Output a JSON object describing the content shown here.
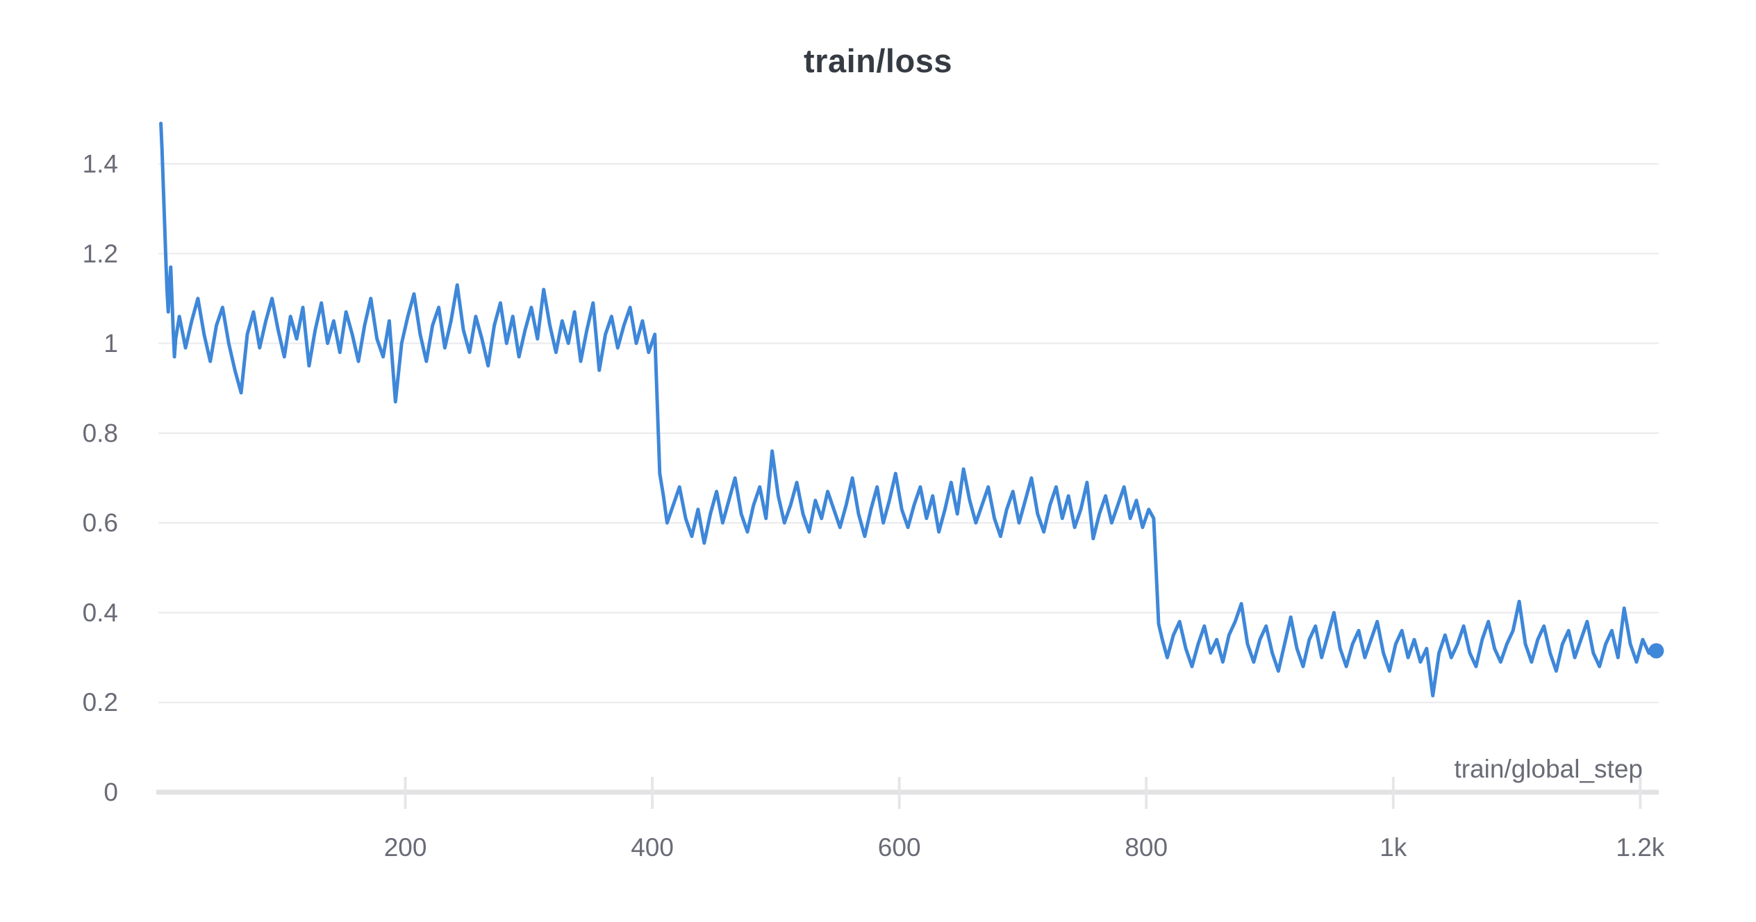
{
  "page": {
    "background": "#ffffff"
  },
  "chart_data": {
    "type": "line",
    "title": "train/loss",
    "xlabel": "train/global_step",
    "ylabel": "",
    "legend": "none",
    "grid": "horizontal",
    "end_marker": true,
    "colors": {
      "line": "#3e87d9",
      "gridline": "#eaeaec",
      "baseline": "#e2e2e5",
      "tick_mark": "#e6e6e8",
      "tick_text": "#696b76",
      "title_text": "#363b43"
    },
    "x_axis": {
      "range": [
        0,
        1215
      ],
      "ticks": [
        200,
        400,
        600,
        800,
        1000,
        1200
      ],
      "tick_labels": [
        "200",
        "400",
        "600",
        "800",
        "1k",
        "1.2k"
      ]
    },
    "y_axis": {
      "range": [
        0,
        1.55
      ],
      "ticks": [
        0,
        0.2,
        0.4,
        0.6,
        0.8,
        1,
        1.2,
        1.4
      ],
      "tick_labels": [
        "0",
        "0.2",
        "0.4",
        "0.6",
        "0.8",
        "1",
        "1.2",
        "1.4"
      ]
    },
    "series": [
      {
        "name": "train/loss",
        "color": "#3e87d9",
        "points": [
          [
            2,
            1.49
          ],
          [
            3,
            1.43
          ],
          [
            4,
            1.35
          ],
          [
            5,
            1.27
          ],
          [
            6,
            1.19
          ],
          [
            7,
            1.12
          ],
          [
            8,
            1.07
          ],
          [
            9,
            1.13
          ],
          [
            10,
            1.17
          ],
          [
            11,
            1.1
          ],
          [
            12,
            1.03
          ],
          [
            13,
            0.97
          ],
          [
            14,
            1.01
          ],
          [
            17,
            1.06
          ],
          [
            22,
            0.99
          ],
          [
            27,
            1.05
          ],
          [
            32,
            1.1
          ],
          [
            37,
            1.02
          ],
          [
            42,
            0.96
          ],
          [
            47,
            1.04
          ],
          [
            52,
            1.08
          ],
          [
            57,
            1.0
          ],
          [
            62,
            0.94
          ],
          [
            67,
            0.89
          ],
          [
            72,
            1.02
          ],
          [
            77,
            1.07
          ],
          [
            82,
            0.99
          ],
          [
            87,
            1.05
          ],
          [
            92,
            1.1
          ],
          [
            97,
            1.03
          ],
          [
            102,
            0.97
          ],
          [
            107,
            1.06
          ],
          [
            112,
            1.01
          ],
          [
            117,
            1.08
          ],
          [
            122,
            0.95
          ],
          [
            127,
            1.03
          ],
          [
            132,
            1.09
          ],
          [
            137,
            1.0
          ],
          [
            142,
            1.05
          ],
          [
            147,
            0.98
          ],
          [
            152,
            1.07
          ],
          [
            157,
            1.02
          ],
          [
            162,
            0.96
          ],
          [
            167,
            1.04
          ],
          [
            172,
            1.1
          ],
          [
            177,
            1.01
          ],
          [
            182,
            0.97
          ],
          [
            187,
            1.05
          ],
          [
            192,
            0.87
          ],
          [
            197,
            1.0
          ],
          [
            202,
            1.06
          ],
          [
            207,
            1.11
          ],
          [
            212,
            1.02
          ],
          [
            217,
            0.96
          ],
          [
            222,
            1.04
          ],
          [
            227,
            1.08
          ],
          [
            232,
            0.99
          ],
          [
            237,
            1.05
          ],
          [
            242,
            1.13
          ],
          [
            247,
            1.03
          ],
          [
            252,
            0.98
          ],
          [
            257,
            1.06
          ],
          [
            262,
            1.01
          ],
          [
            267,
            0.95
          ],
          [
            272,
            1.04
          ],
          [
            277,
            1.09
          ],
          [
            282,
            1.0
          ],
          [
            287,
            1.06
          ],
          [
            292,
            0.97
          ],
          [
            297,
            1.03
          ],
          [
            302,
            1.08
          ],
          [
            307,
            1.01
          ],
          [
            312,
            1.12
          ],
          [
            317,
            1.04
          ],
          [
            322,
            0.98
          ],
          [
            327,
            1.05
          ],
          [
            332,
            1.0
          ],
          [
            337,
            1.07
          ],
          [
            342,
            0.96
          ],
          [
            347,
            1.03
          ],
          [
            352,
            1.09
          ],
          [
            357,
            0.94
          ],
          [
            362,
            1.02
          ],
          [
            367,
            1.06
          ],
          [
            372,
            0.99
          ],
          [
            377,
            1.04
          ],
          [
            382,
            1.08
          ],
          [
            387,
            1.0
          ],
          [
            392,
            1.05
          ],
          [
            397,
            0.98
          ],
          [
            402,
            1.02
          ],
          [
            406,
            0.71
          ],
          [
            409,
            0.66
          ],
          [
            412,
            0.6
          ],
          [
            417,
            0.64
          ],
          [
            422,
            0.68
          ],
          [
            427,
            0.61
          ],
          [
            432,
            0.57
          ],
          [
            437,
            0.63
          ],
          [
            442,
            0.555
          ],
          [
            447,
            0.62
          ],
          [
            452,
            0.67
          ],
          [
            457,
            0.6
          ],
          [
            462,
            0.65
          ],
          [
            467,
            0.7
          ],
          [
            472,
            0.62
          ],
          [
            477,
            0.58
          ],
          [
            482,
            0.64
          ],
          [
            487,
            0.68
          ],
          [
            492,
            0.61
          ],
          [
            497,
            0.76
          ],
          [
            502,
            0.66
          ],
          [
            507,
            0.6
          ],
          [
            512,
            0.64
          ],
          [
            517,
            0.69
          ],
          [
            522,
            0.62
          ],
          [
            527,
            0.58
          ],
          [
            532,
            0.65
          ],
          [
            537,
            0.61
          ],
          [
            542,
            0.67
          ],
          [
            547,
            0.63
          ],
          [
            552,
            0.59
          ],
          [
            557,
            0.64
          ],
          [
            562,
            0.7
          ],
          [
            567,
            0.62
          ],
          [
            572,
            0.57
          ],
          [
            577,
            0.63
          ],
          [
            582,
            0.68
          ],
          [
            587,
            0.6
          ],
          [
            592,
            0.65
          ],
          [
            597,
            0.71
          ],
          [
            602,
            0.63
          ],
          [
            607,
            0.59
          ],
          [
            612,
            0.64
          ],
          [
            617,
            0.68
          ],
          [
            622,
            0.61
          ],
          [
            627,
            0.66
          ],
          [
            632,
            0.58
          ],
          [
            637,
            0.63
          ],
          [
            642,
            0.69
          ],
          [
            647,
            0.62
          ],
          [
            652,
            0.72
          ],
          [
            657,
            0.65
          ],
          [
            662,
            0.6
          ],
          [
            667,
            0.64
          ],
          [
            672,
            0.68
          ],
          [
            677,
            0.61
          ],
          [
            682,
            0.57
          ],
          [
            687,
            0.63
          ],
          [
            692,
            0.67
          ],
          [
            697,
            0.6
          ],
          [
            702,
            0.65
          ],
          [
            707,
            0.7
          ],
          [
            712,
            0.62
          ],
          [
            717,
            0.58
          ],
          [
            722,
            0.64
          ],
          [
            727,
            0.68
          ],
          [
            732,
            0.61
          ],
          [
            737,
            0.66
          ],
          [
            742,
            0.59
          ],
          [
            747,
            0.63
          ],
          [
            752,
            0.69
          ],
          [
            757,
            0.565
          ],
          [
            762,
            0.62
          ],
          [
            767,
            0.66
          ],
          [
            772,
            0.6
          ],
          [
            777,
            0.64
          ],
          [
            782,
            0.68
          ],
          [
            787,
            0.61
          ],
          [
            792,
            0.65
          ],
          [
            797,
            0.59
          ],
          [
            802,
            0.63
          ],
          [
            806,
            0.61
          ],
          [
            810,
            0.375
          ],
          [
            813,
            0.34
          ],
          [
            817,
            0.3
          ],
          [
            822,
            0.35
          ],
          [
            827,
            0.38
          ],
          [
            832,
            0.32
          ],
          [
            837,
            0.28
          ],
          [
            842,
            0.33
          ],
          [
            847,
            0.37
          ],
          [
            852,
            0.31
          ],
          [
            857,
            0.34
          ],
          [
            862,
            0.29
          ],
          [
            867,
            0.35
          ],
          [
            872,
            0.38
          ],
          [
            877,
            0.42
          ],
          [
            882,
            0.33
          ],
          [
            887,
            0.29
          ],
          [
            892,
            0.34
          ],
          [
            897,
            0.37
          ],
          [
            902,
            0.31
          ],
          [
            907,
            0.27
          ],
          [
            912,
            0.33
          ],
          [
            917,
            0.39
          ],
          [
            922,
            0.32
          ],
          [
            927,
            0.28
          ],
          [
            932,
            0.34
          ],
          [
            937,
            0.37
          ],
          [
            942,
            0.3
          ],
          [
            947,
            0.35
          ],
          [
            952,
            0.4
          ],
          [
            957,
            0.32
          ],
          [
            962,
            0.28
          ],
          [
            967,
            0.33
          ],
          [
            972,
            0.36
          ],
          [
            977,
            0.3
          ],
          [
            982,
            0.34
          ],
          [
            987,
            0.38
          ],
          [
            992,
            0.31
          ],
          [
            997,
            0.27
          ],
          [
            1002,
            0.33
          ],
          [
            1007,
            0.36
          ],
          [
            1012,
            0.3
          ],
          [
            1017,
            0.34
          ],
          [
            1022,
            0.29
          ],
          [
            1027,
            0.32
          ],
          [
            1032,
            0.215
          ],
          [
            1037,
            0.31
          ],
          [
            1042,
            0.35
          ],
          [
            1047,
            0.3
          ],
          [
            1052,
            0.33
          ],
          [
            1057,
            0.37
          ],
          [
            1062,
            0.31
          ],
          [
            1067,
            0.28
          ],
          [
            1072,
            0.34
          ],
          [
            1077,
            0.38
          ],
          [
            1082,
            0.32
          ],
          [
            1087,
            0.29
          ],
          [
            1092,
            0.33
          ],
          [
            1097,
            0.36
          ],
          [
            1102,
            0.425
          ],
          [
            1107,
            0.33
          ],
          [
            1112,
            0.29
          ],
          [
            1117,
            0.34
          ],
          [
            1122,
            0.37
          ],
          [
            1127,
            0.31
          ],
          [
            1132,
            0.27
          ],
          [
            1137,
            0.33
          ],
          [
            1142,
            0.36
          ],
          [
            1147,
            0.3
          ],
          [
            1152,
            0.34
          ],
          [
            1157,
            0.38
          ],
          [
            1162,
            0.31
          ],
          [
            1167,
            0.28
          ],
          [
            1172,
            0.33
          ],
          [
            1177,
            0.36
          ],
          [
            1182,
            0.3
          ],
          [
            1187,
            0.41
          ],
          [
            1192,
            0.33
          ],
          [
            1197,
            0.29
          ],
          [
            1202,
            0.34
          ],
          [
            1207,
            0.31
          ],
          [
            1213,
            0.315
          ]
        ]
      }
    ]
  }
}
